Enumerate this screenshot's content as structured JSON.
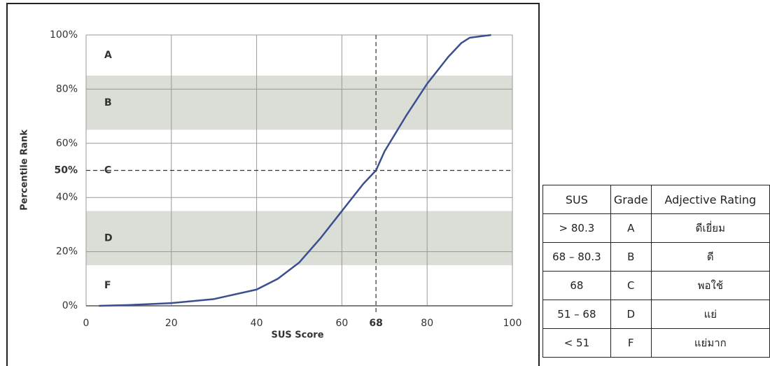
{
  "chart_data": {
    "type": "line",
    "xlabel": "SUS Score",
    "ylabel": "Percentile Rank",
    "x": [
      3,
      10,
      20,
      30,
      40,
      45,
      50,
      55,
      60,
      65,
      68,
      70,
      75,
      80,
      85,
      88,
      90,
      95
    ],
    "series": [
      {
        "color": "#3b4f8e",
        "values": [
          0,
          0.3,
          1,
          2.5,
          6,
          10,
          16,
          25,
          35,
          45,
          50,
          57,
          70,
          82,
          92,
          97,
          99,
          100
        ]
      }
    ],
    "xlim": [
      0,
      100
    ],
    "ylim": [
      0,
      100
    ],
    "xticks": [
      0,
      20,
      40,
      60,
      68,
      80,
      100
    ],
    "yticks": [
      {
        "value": 0,
        "label": "0%"
      },
      {
        "value": 20,
        "label": "20%"
      },
      {
        "value": 40,
        "label": "40%"
      },
      {
        "value": 50,
        "label": "50%"
      },
      {
        "value": 60,
        "label": "60%"
      },
      {
        "value": 80,
        "label": "80%"
      },
      {
        "value": 100,
        "label": "100%"
      }
    ],
    "reference": {
      "x": 68,
      "y": 50
    },
    "grade_bands": [
      {
        "label": "A",
        "range": [
          85,
          100
        ],
        "shaded": false
      },
      {
        "label": "B",
        "range": [
          65,
          85
        ],
        "shaded": true
      },
      {
        "label": "C",
        "range": [
          35,
          65
        ],
        "shaded": false
      },
      {
        "label": "D",
        "range": [
          15,
          35
        ],
        "shaded": true
      },
      {
        "label": "F",
        "range": [
          0,
          15
        ],
        "shaded": false
      }
    ],
    "grid": true
  },
  "table": {
    "header": [
      "SUS",
      "Grade",
      "Adjective Rating"
    ],
    "rows": [
      [
        "> 80.3",
        "A",
        "ดีเยี่ยม"
      ],
      [
        "68 – 80.3",
        "B",
        "ดี"
      ],
      [
        "68",
        "C",
        "พอใช้"
      ],
      [
        "51 – 68",
        "D",
        "แย่"
      ],
      [
        "< 51",
        "F",
        "แย่มาก"
      ]
    ]
  }
}
